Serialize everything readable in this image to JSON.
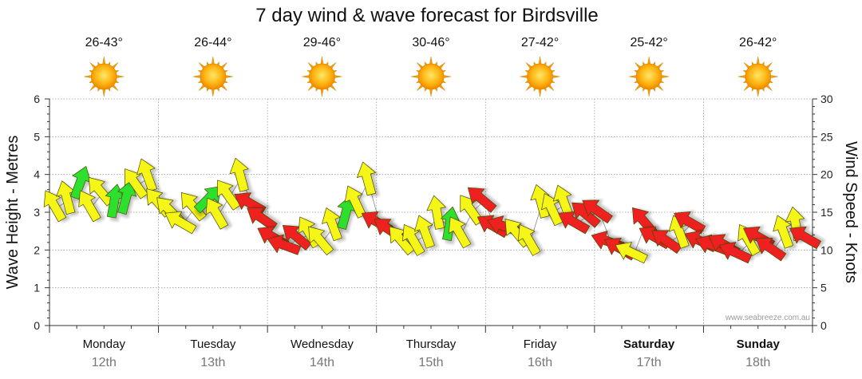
{
  "chart_data": {
    "type": "line",
    "title": "7 day wind & wave forecast for Birdsville",
    "ylabel_left": "Wave Height - Metres",
    "ylabel_right": "Wind Speed - Knots",
    "ylim_left": [
      0,
      6
    ],
    "ylim_right": [
      0,
      30
    ],
    "yticks_left": [
      "0",
      "1",
      "2",
      "3",
      "4",
      "5",
      "6"
    ],
    "yticks_right": [
      "0",
      "5",
      "10",
      "15",
      "20",
      "25",
      "30"
    ],
    "days": [
      {
        "name": "Monday",
        "date": "12th",
        "temp": "26-43°",
        "weather": "sunny",
        "bold": false
      },
      {
        "name": "Tuesday",
        "date": "13th",
        "temp": "26-44°",
        "weather": "sunny",
        "bold": false
      },
      {
        "name": "Wednesday",
        "date": "14th",
        "temp": "29-46°",
        "weather": "sunny",
        "bold": false
      },
      {
        "name": "Thursday",
        "date": "15th",
        "temp": "30-46°",
        "weather": "sunny",
        "bold": false
      },
      {
        "name": "Friday",
        "date": "16th",
        "temp": "27-42°",
        "weather": "sunny",
        "bold": false
      },
      {
        "name": "Saturday",
        "date": "17th",
        "temp": "25-42°",
        "weather": "sunny",
        "bold": true
      },
      {
        "name": "Sunday",
        "date": "18th",
        "temp": "26-42°",
        "weather": "sunny",
        "bold": true
      }
    ],
    "series": [
      {
        "name": "Wind Speed",
        "unit": "knots",
        "values": [
          15.5,
          16.5,
          18.5,
          15.5,
          17.5,
          16,
          16.5,
          18.5,
          19.5,
          16,
          15,
          13.5,
          15.5,
          16.5,
          14.5,
          17,
          19.5,
          16,
          14,
          11.5,
          10.5,
          11.5,
          12,
          11,
          13,
          14.5,
          16,
          19,
          13.5,
          12.5,
          11,
          11,
          12,
          14.5,
          13,
          12,
          15,
          16.5,
          13,
          13,
          12,
          11,
          16,
          15,
          16,
          13.5,
          14.5,
          15,
          11,
          10,
          9.5,
          13.5,
          11.5,
          11,
          12,
          13.5,
          11,
          10.5,
          10.5,
          9.5,
          11,
          11.5,
          10,
          12,
          13,
          11.5
        ],
        "colors": [
          "#f5f518",
          "#f5f518",
          "#2de02d",
          "#f5f518",
          "#f5f518",
          "#2de02d",
          "#2de02d",
          "#f5f518",
          "#f5f518",
          "#f5f518",
          "#f5f518",
          "#f5f518",
          "#f5f518",
          "#2de02d",
          "#f5f518",
          "#f5f518",
          "#f5f518",
          "#ee2020",
          "#ee2020",
          "#ee2020",
          "#ee2020",
          "#ee2020",
          "#f5f518",
          "#f5f518",
          "#f5f518",
          "#2de02d",
          "#f5f518",
          "#f5f518",
          "#ee2020",
          "#ee2020",
          "#f5f518",
          "#f5f518",
          "#f5f518",
          "#f5f518",
          "#2de02d",
          "#f5f518",
          "#f5f518",
          "#ee2020",
          "#ee2020",
          "#ee2020",
          "#f5f518",
          "#f5f518",
          "#f5f518",
          "#f5f518",
          "#f5f518",
          "#ee2020",
          "#ee2020",
          "#ee2020",
          "#ee2020",
          "#ee2020",
          "#f5f518",
          "#ee2020",
          "#ee2020",
          "#ee2020",
          "#f5f518",
          "#ee2020",
          "#ee2020",
          "#ee2020",
          "#ee2020",
          "#ee2020",
          "#f5f518",
          "#ee2020",
          "#ee2020",
          "#f5f518",
          "#f5f518",
          "#ee2020"
        ],
        "directions": [
          330,
          345,
          20,
          330,
          320,
          10,
          15,
          325,
          340,
          320,
          315,
          300,
          320,
          45,
          330,
          325,
          345,
          300,
          305,
          300,
          290,
          310,
          330,
          320,
          340,
          15,
          335,
          345,
          300,
          305,
          320,
          330,
          340,
          350,
          10,
          330,
          325,
          310,
          300,
          290,
          320,
          330,
          345,
          335,
          340,
          300,
          310,
          305,
          290,
          300,
          295,
          320,
          300,
          305,
          340,
          300,
          295,
          290,
          300,
          295,
          330,
          300,
          305,
          340,
          350,
          300
        ]
      }
    ]
  },
  "watermark": "www.seabreeze.com.au"
}
